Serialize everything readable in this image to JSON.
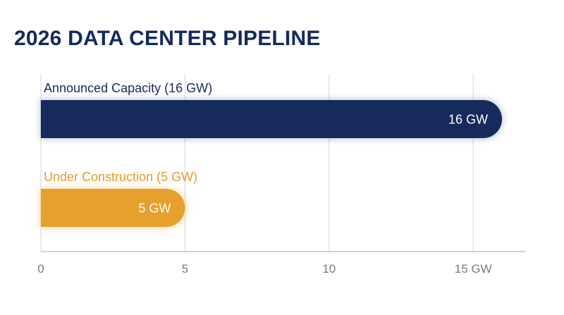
{
  "title": "2026 DATA CENTER PIPELINE",
  "chart_data": {
    "type": "bar",
    "orientation": "horizontal",
    "title": "2026 DATA CENTER PIPELINE",
    "unit": "GW",
    "bars": [
      {
        "label": "Announced Capacity (16 GW)",
        "value": 16,
        "value_label": "16 GW",
        "color": "#142a5c",
        "label_color": "#142a5c"
      },
      {
        "label": "Under Construction (5 GW)",
        "value": 5,
        "value_label": "5 GW",
        "color": "#e6a02d",
        "label_color": "#e09c2e"
      }
    ],
    "x_ticks": [
      {
        "value": 0,
        "label": "0"
      },
      {
        "value": 5,
        "label": "5"
      },
      {
        "value": 10,
        "label": "10"
      },
      {
        "value": 15,
        "label": "15 GW"
      }
    ],
    "xlim": [
      0,
      16.83
    ],
    "grid": true,
    "grid_color": "#d5d5d5",
    "axis_color": "#b8b8b8",
    "tick_label_color": "#7a7a7a",
    "bar_text_color": "#ffffff"
  }
}
